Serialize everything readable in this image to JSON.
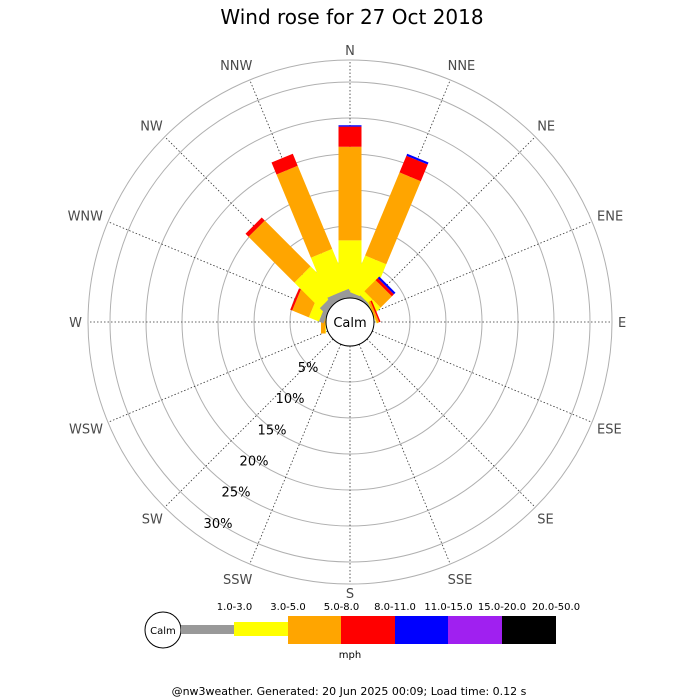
{
  "chart_data": {
    "type": "windrose",
    "title": "Wind rose for 27 Oct 2018",
    "directions": [
      "N",
      "NNE",
      "NE",
      "ENE",
      "E",
      "ESE",
      "SE",
      "SSE",
      "S",
      "SSW",
      "SW",
      "WSW",
      "W",
      "WNW",
      "NW",
      "NNW"
    ],
    "ring_labels": [
      "5%",
      "10%",
      "15%",
      "20%",
      "25%",
      "30%"
    ],
    "ring_values": [
      5,
      10,
      15,
      20,
      25,
      30
    ],
    "max_percent": 30,
    "calm_label": "Calm",
    "speed_unit": "mph",
    "speed_bins": [
      {
        "range": "1.0-3.0",
        "color": "#999999"
      },
      {
        "range": "3.0-5.0",
        "color": "#ffff00"
      },
      {
        "range": "5.0-8.0",
        "color": "#ffa500"
      },
      {
        "range": "8.0-11.0",
        "color": "#ff0000"
      },
      {
        "range": "11.0-15.0",
        "color": "#0000ff"
      },
      {
        "range": "15.0-20.0",
        "color": "#a020f0"
      },
      {
        "range": "20.0-50.0",
        "color": "#000000"
      }
    ],
    "series": [
      {
        "direction": "N",
        "percents": [
          1.0,
          7.0,
          13.0,
          2.8,
          0.2,
          0,
          0
        ]
      },
      {
        "direction": "NNE",
        "percents": [
          0.5,
          5.5,
          12.5,
          2.5,
          0.3,
          0,
          0
        ]
      },
      {
        "direction": "NE",
        "percents": [
          0.3,
          0.8,
          2.2,
          0.4,
          0.3,
          0,
          0
        ]
      },
      {
        "direction": "ENE",
        "percents": [
          0,
          0.1,
          0.3,
          0.2,
          0,
          0,
          0
        ]
      },
      {
        "direction": "E",
        "percents": [
          0,
          0,
          0,
          0,
          0,
          0,
          0
        ]
      },
      {
        "direction": "ESE",
        "percents": [
          0,
          0,
          0,
          0,
          0,
          0,
          0
        ]
      },
      {
        "direction": "SE",
        "percents": [
          0,
          0,
          0,
          0,
          0,
          0,
          0
        ]
      },
      {
        "direction": "SSE",
        "percents": [
          0,
          0,
          0,
          0,
          0,
          0,
          0
        ]
      },
      {
        "direction": "S",
        "percents": [
          0,
          0,
          0,
          0,
          0,
          0,
          0
        ]
      },
      {
        "direction": "SSW",
        "percents": [
          0,
          0,
          0,
          0,
          0,
          0,
          0
        ]
      },
      {
        "direction": "SW",
        "percents": [
          0,
          0,
          0,
          0,
          0,
          0,
          0
        ]
      },
      {
        "direction": "WSW",
        "percents": [
          0,
          0,
          0,
          0,
          0,
          0,
          0
        ]
      },
      {
        "direction": "W",
        "percents": [
          0,
          0.1,
          0.6,
          0,
          0,
          0,
          0
        ]
      },
      {
        "direction": "WNW",
        "percents": [
          0.7,
          1.5,
          2.5,
          0.3,
          0,
          0,
          0
        ]
      },
      {
        "direction": "NW",
        "percents": [
          1.0,
          5.0,
          9.0,
          0.6,
          0,
          0,
          0
        ]
      },
      {
        "direction": "NNW",
        "percents": [
          1.0,
          6.0,
          12.5,
          1.8,
          0,
          0,
          0
        ]
      }
    ]
  },
  "footer": "@nw3weather. Generated: 20 Jun 2025 00:09; Load time: 0.12 s"
}
